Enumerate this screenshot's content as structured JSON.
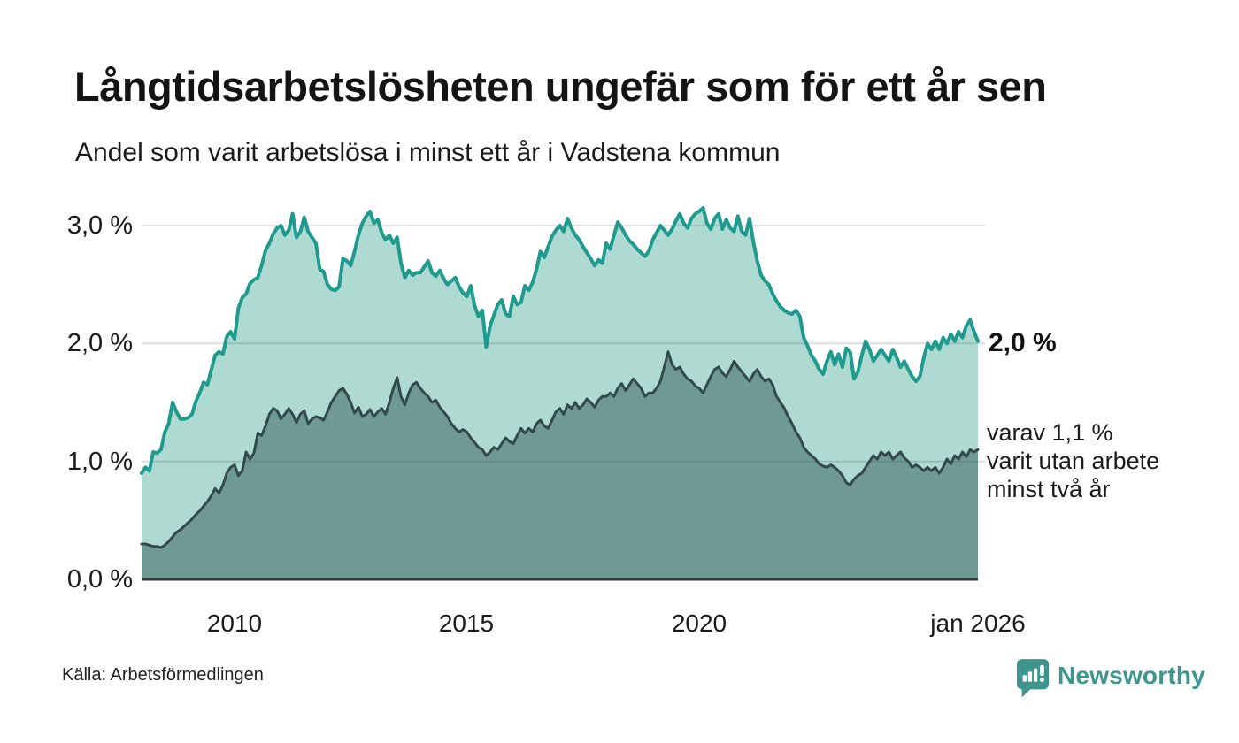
{
  "title": "Långtidsarbetslösheten ungefär som för ett år sen",
  "subtitle": "Andel som varit arbetslösa i minst ett år i Vadstena kommun",
  "source": "Källa: Arbetsförmedlingen",
  "branding": {
    "logo_text": "Newsworthy",
    "logo_color": "#3d958d"
  },
  "chart_data": {
    "type": "area",
    "title": "Långtidsarbetslösheten ungefär som för ett år sen",
    "subtitle": "Andel som varit arbetslösa i minst ett år i Vadstena kommun",
    "x_unit": "month",
    "x_range": [
      "2008-01",
      "2026-01"
    ],
    "x_ticks": [
      {
        "label": "2010",
        "month_index": 24
      },
      {
        "label": "2015",
        "month_index": 84
      },
      {
        "label": "2020",
        "month_index": 144
      },
      {
        "label": "jan 2026",
        "month_index": 216
      }
    ],
    "y_ticks": [
      {
        "label": "0,0 %",
        "value": 0
      },
      {
        "label": "1,0 %",
        "value": 1
      },
      {
        "label": "2,0 %",
        "value": 2
      },
      {
        "label": "3,0 %",
        "value": 3
      }
    ],
    "ylim": [
      0,
      3.2
    ],
    "grid": "horizontal",
    "annotations": {
      "end_value_label": "2,0 %",
      "secondary_lines": [
        "varav 1,1 %",
        "varit utan arbete",
        "minst två år"
      ]
    },
    "series": [
      {
        "name": "arbetslösa minst ett år",
        "end_value": 2.0,
        "line_color": "#1e9b8e",
        "fill_color": "#aedad2",
        "values": [
          0.9,
          0.95,
          0.92,
          1.08,
          1.07,
          1.1,
          1.25,
          1.32,
          1.5,
          1.42,
          1.36,
          1.36,
          1.37,
          1.4,
          1.51,
          1.58,
          1.67,
          1.65,
          1.78,
          1.9,
          1.93,
          1.91,
          2.06,
          2.1,
          2.04,
          2.3,
          2.39,
          2.42,
          2.51,
          2.54,
          2.56,
          2.66,
          2.79,
          2.85,
          2.93,
          2.98,
          3.0,
          2.92,
          2.96,
          3.1,
          2.9,
          2.95,
          3.07,
          2.95,
          2.9,
          2.85,
          2.63,
          2.61,
          2.5,
          2.46,
          2.45,
          2.48,
          2.72,
          2.7,
          2.66,
          2.78,
          2.92,
          3.02,
          3.08,
          3.12,
          3.02,
          3.05,
          2.94,
          2.88,
          2.92,
          2.85,
          2.9,
          2.68,
          2.56,
          2.62,
          2.58,
          2.6,
          2.6,
          2.65,
          2.7,
          2.6,
          2.57,
          2.62,
          2.55,
          2.5,
          2.53,
          2.56,
          2.48,
          2.43,
          2.4,
          2.49,
          2.32,
          2.23,
          2.28,
          1.97,
          2.15,
          2.24,
          2.33,
          2.37,
          2.25,
          2.23,
          2.4,
          2.33,
          2.35,
          2.49,
          2.45,
          2.52,
          2.63,
          2.78,
          2.73,
          2.82,
          2.91,
          2.96,
          3.0,
          2.95,
          3.06,
          2.98,
          2.92,
          2.88,
          2.82,
          2.77,
          2.72,
          2.66,
          2.71,
          2.68,
          2.85,
          2.8,
          2.92,
          3.03,
          2.98,
          2.92,
          2.87,
          2.84,
          2.8,
          2.77,
          2.74,
          2.78,
          2.88,
          2.94,
          3.0,
          2.96,
          2.92,
          2.97,
          3.04,
          3.1,
          3.02,
          2.98,
          3.06,
          3.1,
          3.12,
          3.15,
          3.02,
          2.97,
          3.06,
          3.1,
          2.97,
          3.05,
          2.98,
          2.95,
          3.08,
          2.95,
          2.92,
          3.06,
          2.86,
          2.7,
          2.58,
          2.53,
          2.5,
          2.42,
          2.36,
          2.31,
          2.28,
          2.26,
          2.25,
          2.28,
          2.23,
          2.05,
          1.98,
          1.9,
          1.85,
          1.78,
          1.74,
          1.85,
          1.93,
          1.82,
          1.91,
          1.8,
          1.96,
          1.93,
          1.7,
          1.76,
          1.9,
          2.02,
          1.95,
          1.85,
          1.9,
          1.95,
          1.9,
          1.85,
          1.95,
          1.88,
          1.8,
          1.85,
          1.78,
          1.72,
          1.68,
          1.72,
          1.88,
          2.0,
          1.95,
          2.02,
          1.95,
          2.05,
          2.0,
          2.08,
          2.02,
          2.1,
          2.05,
          2.15,
          2.2,
          2.1,
          2.02
        ]
      },
      {
        "name": "varav utan arbete minst två år",
        "end_value": 1.1,
        "line_color": "#334a4b",
        "fill_color": "#6f9a94",
        "values": [
          0.3,
          0.3,
          0.29,
          0.28,
          0.28,
          0.27,
          0.29,
          0.32,
          0.36,
          0.4,
          0.42,
          0.45,
          0.48,
          0.51,
          0.55,
          0.58,
          0.62,
          0.66,
          0.71,
          0.77,
          0.73,
          0.8,
          0.9,
          0.95,
          0.97,
          0.88,
          0.92,
          1.08,
          1.02,
          1.07,
          1.24,
          1.22,
          1.3,
          1.4,
          1.45,
          1.43,
          1.36,
          1.4,
          1.45,
          1.4,
          1.33,
          1.4,
          1.43,
          1.32,
          1.36,
          1.38,
          1.37,
          1.35,
          1.42,
          1.5,
          1.55,
          1.6,
          1.62,
          1.57,
          1.5,
          1.41,
          1.46,
          1.38,
          1.4,
          1.44,
          1.38,
          1.42,
          1.45,
          1.4,
          1.5,
          1.62,
          1.71,
          1.55,
          1.48,
          1.58,
          1.65,
          1.67,
          1.62,
          1.58,
          1.55,
          1.5,
          1.52,
          1.46,
          1.42,
          1.38,
          1.32,
          1.28,
          1.25,
          1.27,
          1.25,
          1.2,
          1.16,
          1.12,
          1.1,
          1.05,
          1.08,
          1.12,
          1.1,
          1.15,
          1.2,
          1.17,
          1.15,
          1.22,
          1.28,
          1.24,
          1.28,
          1.25,
          1.32,
          1.35,
          1.3,
          1.28,
          1.35,
          1.42,
          1.45,
          1.4,
          1.48,
          1.45,
          1.5,
          1.45,
          1.48,
          1.53,
          1.5,
          1.46,
          1.52,
          1.55,
          1.55,
          1.58,
          1.55,
          1.62,
          1.66,
          1.6,
          1.65,
          1.7,
          1.66,
          1.62,
          1.55,
          1.58,
          1.58,
          1.62,
          1.68,
          1.8,
          1.93,
          1.82,
          1.78,
          1.8,
          1.74,
          1.7,
          1.68,
          1.64,
          1.62,
          1.58,
          1.65,
          1.72,
          1.78,
          1.8,
          1.75,
          1.72,
          1.78,
          1.85,
          1.8,
          1.76,
          1.72,
          1.68,
          1.74,
          1.78,
          1.72,
          1.68,
          1.7,
          1.65,
          1.55,
          1.5,
          1.45,
          1.38,
          1.32,
          1.25,
          1.2,
          1.12,
          1.08,
          1.05,
          1.02,
          0.98,
          0.96,
          0.95,
          0.97,
          0.95,
          0.92,
          0.88,
          0.82,
          0.8,
          0.85,
          0.88,
          0.9,
          0.95,
          1.0,
          1.05,
          1.02,
          1.08,
          1.05,
          1.08,
          1.02,
          1.05,
          1.08,
          1.03,
          1.0,
          0.95,
          0.97,
          0.95,
          0.92,
          0.95,
          0.92,
          0.95,
          0.9,
          0.95,
          1.02,
          0.98,
          1.05,
          1.02,
          1.08,
          1.04,
          1.1,
          1.08,
          1.1
        ]
      }
    ],
    "colors": {
      "grid": "#dfe2e3",
      "axis": "#333b3b",
      "text": "#1b1b1b"
    }
  }
}
